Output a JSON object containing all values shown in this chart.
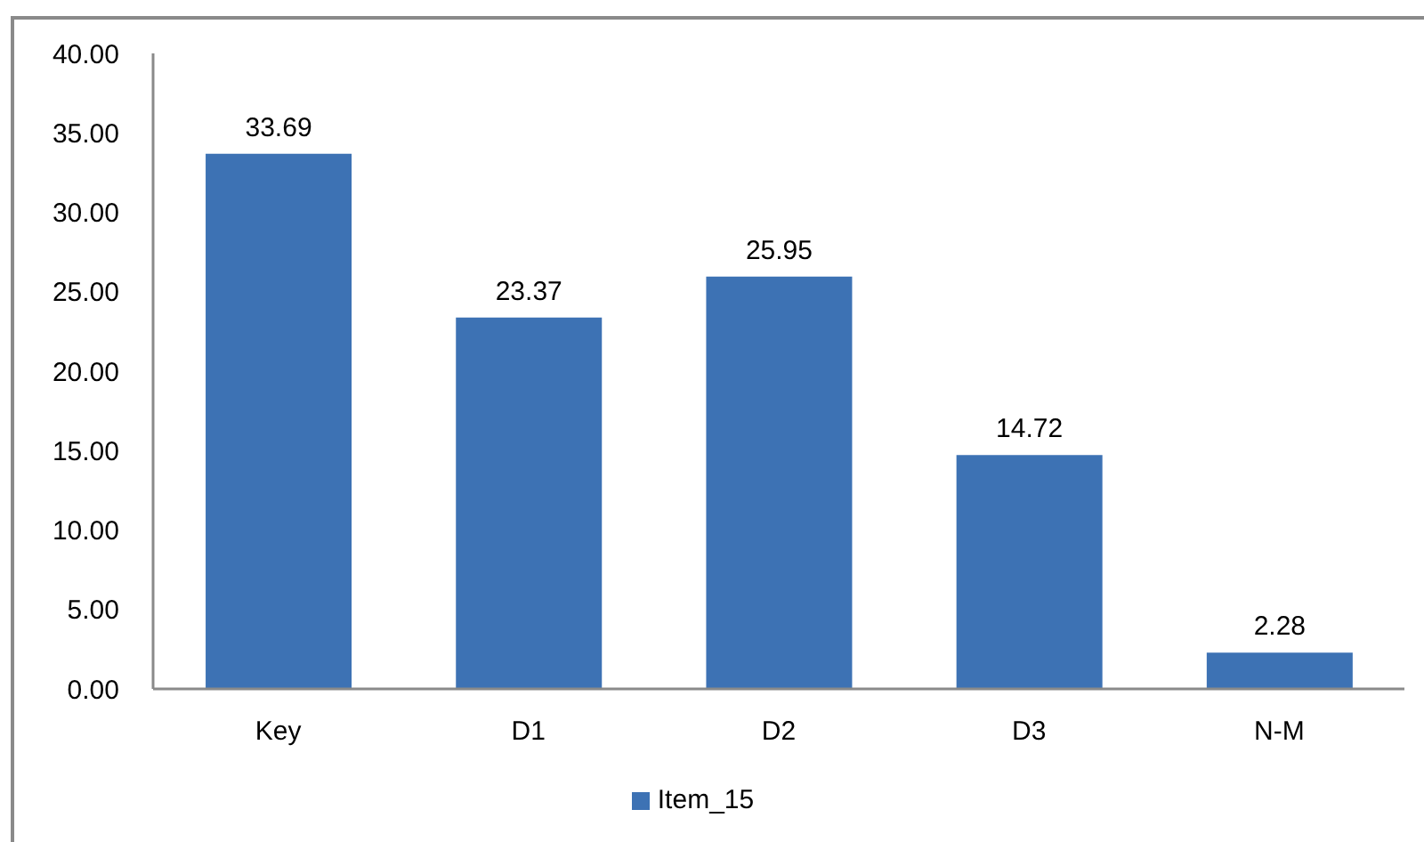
{
  "chart_data": {
    "type": "bar",
    "categories": [
      "Key",
      "D1",
      "D2",
      "D3",
      "N-M"
    ],
    "series": [
      {
        "name": "Item_15",
        "color": "#3d72b4",
        "values": [
          33.69,
          23.37,
          25.95,
          14.72,
          2.28
        ]
      }
    ],
    "ylim": [
      0,
      40
    ],
    "yticks": [
      {
        "value": 0,
        "label": "0.00"
      },
      {
        "value": 5,
        "label": "5.00"
      },
      {
        "value": 10,
        "label": "10.00"
      },
      {
        "value": 15,
        "label": "15.00"
      },
      {
        "value": 20,
        "label": "20.00"
      },
      {
        "value": 25,
        "label": "25.00"
      },
      {
        "value": 30,
        "label": "30.00"
      },
      {
        "value": 35,
        "label": "35.00"
      },
      {
        "value": 40,
        "label": "40.00"
      }
    ],
    "data_labels": true,
    "legend": "bottom"
  }
}
